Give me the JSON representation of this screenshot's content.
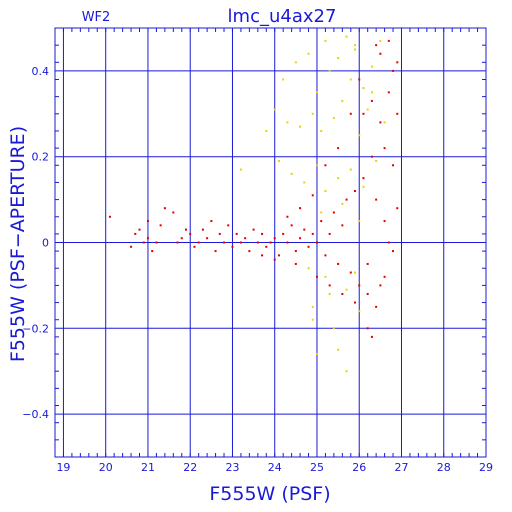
{
  "chart_data": {
    "type": "scatter",
    "title": "lmc_u4ax27",
    "panel_label": "WF2",
    "xlabel": "F555W (PSF)",
    "ylabel": "F555W (PSF−APERTURE)",
    "xlim": [
      18.8,
      29.0
    ],
    "ylim": [
      -0.5,
      0.5
    ],
    "x_ticks": [
      19,
      20,
      21,
      22,
      23,
      24,
      25,
      26,
      27,
      28,
      29
    ],
    "x_tick_labels": [
      "19",
      "20",
      "21",
      "22",
      "23",
      "24",
      "25",
      "26",
      "27",
      "28",
      "29"
    ],
    "y_ticks": [
      -0.4,
      -0.2,
      0,
      0.2,
      0.4
    ],
    "y_tick_labels": [
      "−0.4",
      "−0.2",
      "0",
      "0.2",
      "0.4"
    ],
    "grid": true,
    "legend": "none",
    "colors": {
      "axes": "#1a1ad6",
      "grid": "#1a1ad6",
      "text": "#1a1ad6"
    },
    "series": [
      {
        "color": "#e8d400",
        "points": [
          [
            24.2,
            0.38
          ],
          [
            24.5,
            0.42
          ],
          [
            24.8,
            0.44
          ],
          [
            25.0,
            0.35
          ],
          [
            25.3,
            0.4
          ],
          [
            25.5,
            0.43
          ],
          [
            25.7,
            0.48
          ],
          [
            25.8,
            0.38
          ],
          [
            25.9,
            0.45
          ],
          [
            26.1,
            0.36
          ],
          [
            26.3,
            0.41
          ],
          [
            26.5,
            0.47
          ],
          [
            24.0,
            0.31
          ],
          [
            24.3,
            0.28
          ],
          [
            24.6,
            0.27
          ],
          [
            24.9,
            0.3
          ],
          [
            25.1,
            0.26
          ],
          [
            25.4,
            0.29
          ],
          [
            25.6,
            0.33
          ],
          [
            26.0,
            0.25
          ],
          [
            26.2,
            0.31
          ],
          [
            26.6,
            0.28
          ],
          [
            24.1,
            0.19
          ],
          [
            24.4,
            0.16
          ],
          [
            24.7,
            0.14
          ],
          [
            25.0,
            0.18
          ],
          [
            25.2,
            0.12
          ],
          [
            25.5,
            0.15
          ],
          [
            25.8,
            0.17
          ],
          [
            26.1,
            0.13
          ],
          [
            26.4,
            0.19
          ],
          [
            24.6,
            0.08
          ],
          [
            25.1,
            0.07
          ],
          [
            25.6,
            0.09
          ],
          [
            26.0,
            0.05
          ],
          [
            24.8,
            -0.06
          ],
          [
            25.2,
            -0.08
          ],
          [
            25.5,
            -0.05
          ],
          [
            25.9,
            -0.07
          ],
          [
            24.9,
            -0.15
          ],
          [
            25.3,
            -0.12
          ],
          [
            25.7,
            -0.11
          ],
          [
            24.9,
            -0.18
          ],
          [
            25.4,
            -0.2
          ],
          [
            26.0,
            -0.16
          ],
          [
            25.0,
            -0.26
          ],
          [
            25.5,
            -0.25
          ],
          [
            25.7,
            -0.3
          ],
          [
            23.2,
            0.17
          ],
          [
            23.8,
            0.26
          ],
          [
            25.2,
            0.47
          ],
          [
            25.9,
            0.46
          ],
          [
            26.3,
            0.35
          ]
        ]
      },
      {
        "color": "#e00000",
        "points": [
          [
            20.1,
            0.06
          ],
          [
            20.6,
            -0.01
          ],
          [
            20.7,
            0.02
          ],
          [
            20.8,
            0.03
          ],
          [
            20.9,
            0.0
          ],
          [
            21.0,
            0.01
          ],
          [
            21.0,
            0.05
          ],
          [
            21.1,
            -0.02
          ],
          [
            21.2,
            0.0
          ],
          [
            21.3,
            0.04
          ],
          [
            21.4,
            0.08
          ],
          [
            21.6,
            0.07
          ],
          [
            21.7,
            0.0
          ],
          [
            21.8,
            0.01
          ],
          [
            21.9,
            0.03
          ],
          [
            22.0,
            0.02
          ],
          [
            22.1,
            -0.01
          ],
          [
            22.2,
            0.0
          ],
          [
            22.3,
            0.03
          ],
          [
            22.4,
            0.01
          ],
          [
            22.5,
            0.05
          ],
          [
            22.6,
            -0.02
          ],
          [
            22.7,
            0.02
          ],
          [
            22.8,
            0.0
          ],
          [
            22.9,
            0.04
          ],
          [
            23.0,
            -0.01
          ],
          [
            23.1,
            0.02
          ],
          [
            23.2,
            0.0
          ],
          [
            23.3,
            0.01
          ],
          [
            23.4,
            -0.02
          ],
          [
            23.5,
            0.03
          ],
          [
            23.6,
            0.0
          ],
          [
            23.7,
            0.02
          ],
          [
            23.8,
            -0.01
          ],
          [
            23.9,
            0.0
          ],
          [
            24.0,
            0.01
          ],
          [
            24.1,
            -0.03
          ],
          [
            24.2,
            0.02
          ],
          [
            24.3,
            0.0
          ],
          [
            24.4,
            0.04
          ],
          [
            24.5,
            -0.02
          ],
          [
            24.6,
            0.01
          ],
          [
            24.7,
            0.03
          ],
          [
            24.8,
            -0.01
          ],
          [
            24.9,
            0.02
          ],
          [
            25.0,
            0.0
          ],
          [
            25.1,
            0.05
          ],
          [
            25.2,
            -0.03
          ],
          [
            25.3,
            0.02
          ],
          [
            25.4,
            0.07
          ],
          [
            25.5,
            -0.05
          ],
          [
            25.6,
            0.04
          ],
          [
            25.7,
            0.1
          ],
          [
            25.8,
            -0.07
          ],
          [
            25.9,
            0.12
          ],
          [
            26.0,
            -0.1
          ],
          [
            26.1,
            0.15
          ],
          [
            26.2,
            -0.12
          ],
          [
            26.3,
            0.2
          ],
          [
            26.4,
            -0.15
          ],
          [
            26.5,
            0.28
          ],
          [
            26.6,
            -0.08
          ],
          [
            26.7,
            0.35
          ],
          [
            26.8,
            0.18
          ],
          [
            26.9,
            0.3
          ],
          [
            26.5,
            0.44
          ],
          [
            26.7,
            0.47
          ],
          [
            26.9,
            0.42
          ],
          [
            26.4,
            0.1
          ],
          [
            26.6,
            0.05
          ],
          [
            26.8,
            -0.02
          ],
          [
            26.2,
            -0.2
          ],
          [
            26.3,
            -0.22
          ],
          [
            26.1,
            0.3
          ],
          [
            26.0,
            0.38
          ],
          [
            25.8,
            0.3
          ],
          [
            25.5,
            0.22
          ],
          [
            25.2,
            0.18
          ],
          [
            24.9,
            0.11
          ],
          [
            24.6,
            0.08
          ],
          [
            24.3,
            0.06
          ],
          [
            24.0,
            -0.04
          ],
          [
            23.7,
            -0.03
          ],
          [
            24.5,
            -0.05
          ],
          [
            25.0,
            -0.08
          ],
          [
            25.3,
            -0.1
          ],
          [
            25.6,
            -0.12
          ],
          [
            25.9,
            -0.14
          ],
          [
            26.2,
            -0.05
          ],
          [
            26.5,
            -0.1
          ],
          [
            26.7,
            0.0
          ],
          [
            26.9,
            0.08
          ],
          [
            26.6,
            0.22
          ],
          [
            26.3,
            0.33
          ],
          [
            26.8,
            0.4
          ],
          [
            26.4,
            0.46
          ]
        ]
      }
    ]
  }
}
